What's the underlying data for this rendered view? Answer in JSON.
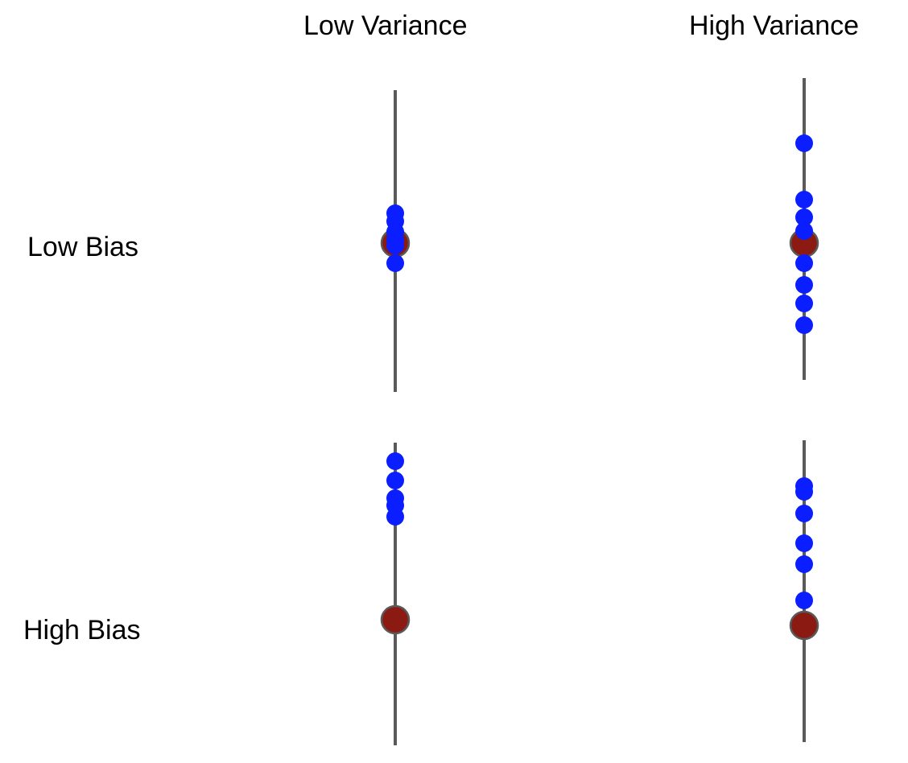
{
  "columns": {
    "low_variance": "Low Variance",
    "high_variance": "High Variance"
  },
  "rows": {
    "low_bias": "Low Bias",
    "high_bias": "High Bias"
  },
  "colors": {
    "axis": "#5a5a5a",
    "estimate": "#0a1eff",
    "true_value": "#8b1a12",
    "true_value_outline": "#5a5a5a"
  },
  "icons": {
    "estimate": "blue-dot",
    "true_value": "red-circle"
  }
}
